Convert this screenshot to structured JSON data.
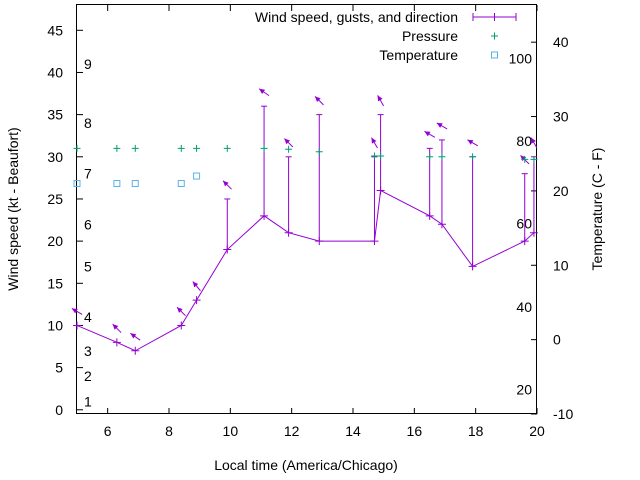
{
  "chart_data": {
    "type": "line",
    "title": "",
    "xlabel": "Local time (America/Chicago)",
    "ylabel": "Wind speed (kt - Beaufort)",
    "y2label": "Temperature (C - F)",
    "xlim": [
      5,
      20
    ],
    "ylim": [
      -0.5,
      48
    ],
    "y2lim": [
      -10,
      45
    ],
    "x_ticks": [
      6,
      8,
      10,
      12,
      14,
      16,
      18,
      20
    ],
    "y_ticks": [
      0,
      5,
      10,
      15,
      20,
      25,
      30,
      35,
      40,
      45
    ],
    "y2_ticks": [
      -10,
      0,
      10,
      20,
      30,
      40
    ],
    "beaufort_labels": [
      {
        "text": "1",
        "y": 1
      },
      {
        "text": "2",
        "y": 4
      },
      {
        "text": "3",
        "y": 7
      },
      {
        "text": "4",
        "y": 11
      },
      {
        "text": "5",
        "y": 17
      },
      {
        "text": "6",
        "y": 22
      },
      {
        "text": "7",
        "y": 28
      },
      {
        "text": "8",
        "y": 34
      },
      {
        "text": "9",
        "y": 41
      }
    ],
    "fahrenheit_labels": [
      {
        "text": "20",
        "t": -6.7
      },
      {
        "text": "40",
        "t": 4.4
      },
      {
        "text": "60",
        "t": 15.6
      },
      {
        "text": "80",
        "t": 26.7
      },
      {
        "text": "100",
        "t": 37.8
      }
    ],
    "legend": [
      {
        "label": "Wind speed, gusts, and direction",
        "marker": "line"
      },
      {
        "label": "Pressure",
        "marker": "plus"
      },
      {
        "label": "Temperature",
        "marker": "square"
      }
    ],
    "legend_position": "top-right",
    "colors": {
      "wind": "#9400d3",
      "pressure": "#009e73",
      "temperature": "#56b4e9"
    },
    "series": [
      {
        "name": "Wind speed, gusts, and direction",
        "points": [
          {
            "x": 5.0,
            "speed": 10,
            "gust": 10,
            "dir": 300
          },
          {
            "x": 6.3,
            "speed": 8,
            "gust": 8,
            "dir": 315
          },
          {
            "x": 6.9,
            "speed": 7,
            "gust": 7,
            "dir": 305
          },
          {
            "x": 8.4,
            "speed": 10,
            "gust": 10,
            "dir": 315
          },
          {
            "x": 8.9,
            "speed": 13,
            "gust": 13,
            "dir": 320
          },
          {
            "x": 9.9,
            "speed": 19,
            "gust": 25,
            "dir": 315
          },
          {
            "x": 11.1,
            "speed": 23,
            "gust": 36,
            "dir": 305
          },
          {
            "x": 11.9,
            "speed": 21,
            "gust": 30,
            "dir": 315
          },
          {
            "x": 12.9,
            "speed": 20,
            "gust": 35,
            "dir": 315
          },
          {
            "x": 14.7,
            "speed": 20,
            "gust": 30,
            "dir": 330
          },
          {
            "x": 14.9,
            "speed": 26,
            "gust": 35,
            "dir": 330
          },
          {
            "x": 16.5,
            "speed": 23,
            "gust": 31,
            "dir": 300
          },
          {
            "x": 16.9,
            "speed": 22,
            "gust": 32,
            "dir": 300
          },
          {
            "x": 17.9,
            "speed": 17,
            "gust": 30,
            "dir": 300
          },
          {
            "x": 19.6,
            "speed": 20,
            "gust": 28,
            "dir": 315
          },
          {
            "x": 19.9,
            "speed": 21,
            "gust": 30,
            "dir": 330
          }
        ]
      },
      {
        "name": "Pressure",
        "points": [
          {
            "x": 5.0,
            "y": 31
          },
          {
            "x": 6.3,
            "y": 31
          },
          {
            "x": 6.9,
            "y": 31
          },
          {
            "x": 8.4,
            "y": 31
          },
          {
            "x": 8.9,
            "y": 31
          },
          {
            "x": 9.9,
            "y": 31
          },
          {
            "x": 11.1,
            "y": 31
          },
          {
            "x": 11.9,
            "y": 30.9
          },
          {
            "x": 12.9,
            "y": 30.6
          },
          {
            "x": 14.7,
            "y": 30.1
          },
          {
            "x": 14.9,
            "y": 30.1
          },
          {
            "x": 16.5,
            "y": 30
          },
          {
            "x": 16.9,
            "y": 30
          },
          {
            "x": 17.9,
            "y": 30
          },
          {
            "x": 19.6,
            "y": 29.7
          },
          {
            "x": 19.9,
            "y": 29.7
          }
        ]
      },
      {
        "name": "Temperature",
        "points": [
          {
            "x": 5.0,
            "t": 21
          },
          {
            "x": 6.3,
            "t": 21
          },
          {
            "x": 6.9,
            "t": 21
          },
          {
            "x": 8.4,
            "t": 21
          },
          {
            "x": 8.9,
            "t": 22
          }
        ]
      }
    ]
  }
}
